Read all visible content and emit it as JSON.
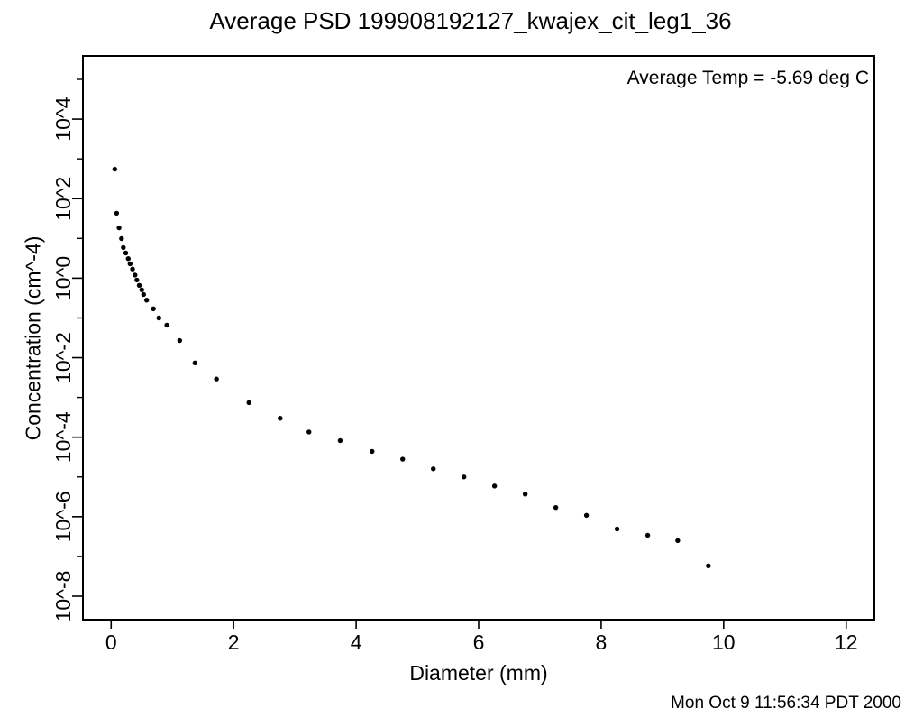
{
  "page": {
    "background_color": "#ffffff",
    "foreground_color": "#000000"
  },
  "title": "Average PSD 199908192127_kwajex_cit_leg1_36",
  "annotation": "Average Temp = -5.69 deg C",
  "timestamp": "Mon Oct  9 11:56:34 PDT 2000",
  "chart_data": {
    "type": "scatter",
    "title": "Average PSD 199908192127_kwajex_cit_leg1_36",
    "xlabel": "Diameter (mm)",
    "ylabel": "Concentration (cm^-4)",
    "annotation": "Average Temp = -5.69 deg C",
    "grid": false,
    "legend": null,
    "marker": {
      "shape": "filled-circle",
      "color": "#000000",
      "radius_px": 2.7
    },
    "x_scale": "linear",
    "y_scale": "log10",
    "xlim": [
      -0.46,
      12.46
    ],
    "ylim_log10": [
      -8.59,
      5.59
    ],
    "x_tick_values": [
      0,
      2,
      4,
      6,
      8,
      10,
      12
    ],
    "x_tick_labels": [
      "0",
      "2",
      "4",
      "6",
      "8",
      "10",
      "12"
    ],
    "y_major_tick_decades": [
      4,
      2,
      0,
      -2,
      -4,
      -6,
      -8
    ],
    "y_major_tick_labels": [
      "10^4",
      "10^2",
      "10^0",
      "10^-2",
      "10^-4",
      "10^-6",
      "10^-8"
    ],
    "y_minor_tick_decades": [
      5,
      3,
      1,
      -1,
      -3,
      -5,
      -7
    ],
    "points_format": [
      "diameter_mm",
      "concentration_cm^-4"
    ],
    "points": [
      [
        0.06,
        550
      ],
      [
        0.09,
        43
      ],
      [
        0.13,
        18.5
      ],
      [
        0.17,
        9.9
      ],
      [
        0.2,
        5.9
      ],
      [
        0.24,
        4.3
      ],
      [
        0.28,
        3.1
      ],
      [
        0.31,
        2.3
      ],
      [
        0.35,
        1.7
      ],
      [
        0.39,
        1.2
      ],
      [
        0.42,
        0.9
      ],
      [
        0.46,
        0.66
      ],
      [
        0.5,
        0.51
      ],
      [
        0.53,
        0.39
      ],
      [
        0.58,
        0.28
      ],
      [
        0.69,
        0.17
      ],
      [
        0.78,
        0.1
      ],
      [
        0.91,
        0.066
      ],
      [
        1.12,
        0.027
      ],
      [
        1.37,
        0.0074
      ],
      [
        1.72,
        0.0029
      ],
      [
        2.25,
        0.00074
      ],
      [
        2.76,
        0.0003
      ],
      [
        3.23,
        0.000135
      ],
      [
        3.74,
        8.2e-05
      ],
      [
        4.26,
        4.4e-05
      ],
      [
        4.76,
        2.8e-05
      ],
      [
        5.26,
        1.6e-05
      ],
      [
        5.76,
        1e-05
      ],
      [
        6.26,
        5.9e-06
      ],
      [
        6.76,
        3.7e-06
      ],
      [
        7.26,
        1.7e-06
      ],
      [
        7.76,
        1.08e-06
      ],
      [
        8.26,
        4.9e-07
      ],
      [
        8.76,
        3.4e-07
      ],
      [
        9.25,
        2.5e-07
      ],
      [
        9.75,
        5.8e-08
      ]
    ]
  }
}
